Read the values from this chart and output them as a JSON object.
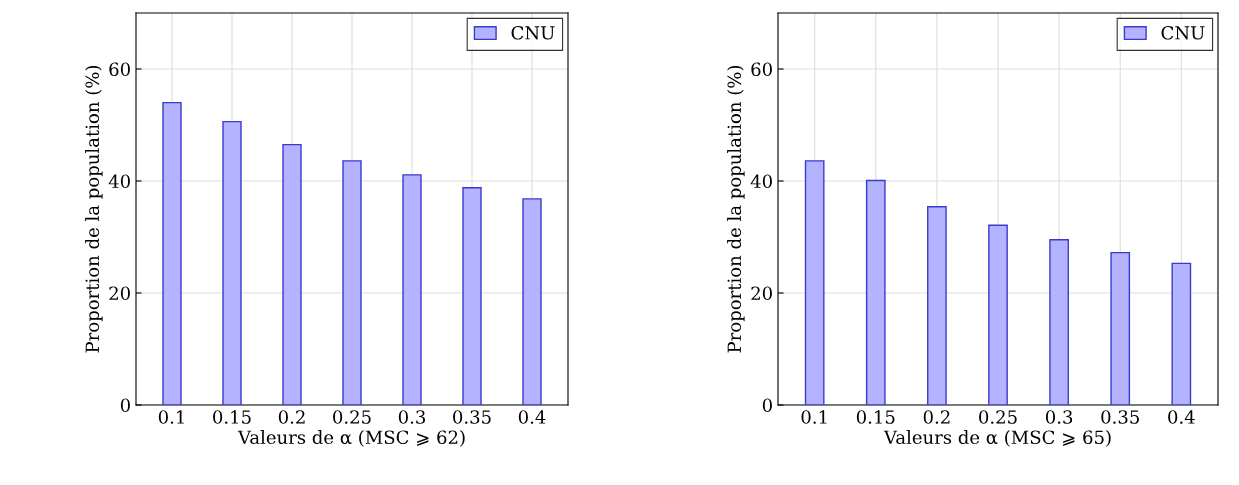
{
  "chart_data": [
    {
      "type": "bar",
      "xlabel": "Valeurs de α (MSC ⩾ 62)",
      "ylabel": "Proportion de la population (%)",
      "categories": [
        "0.1",
        "0.15",
        "0.2",
        "0.25",
        "0.3",
        "0.35",
        "0.4"
      ],
      "series": [
        {
          "name": "CNU",
          "color": "#b3b3ff",
          "values": [
            54.0,
            50.6,
            46.5,
            43.6,
            41.1,
            38.8,
            36.8
          ]
        }
      ],
      "ylim": [
        0,
        70
      ],
      "yticks": [
        0,
        20,
        40,
        60
      ],
      "grid": true,
      "legend": "top right"
    },
    {
      "type": "bar",
      "xlabel": "Valeurs de α (MSC ⩾ 65)",
      "ylabel": "Proportion de la population (%)",
      "categories": [
        "0.1",
        "0.15",
        "0.2",
        "0.25",
        "0.3",
        "0.35",
        "0.4"
      ],
      "series": [
        {
          "name": "CNU",
          "color": "#b3b3ff",
          "values": [
            43.6,
            40.1,
            35.4,
            32.1,
            29.5,
            27.2,
            25.3
          ]
        }
      ],
      "ylim": [
        0,
        70
      ],
      "yticks": [
        0,
        20,
        40,
        60
      ],
      "grid": true,
      "legend": "top right"
    }
  ]
}
